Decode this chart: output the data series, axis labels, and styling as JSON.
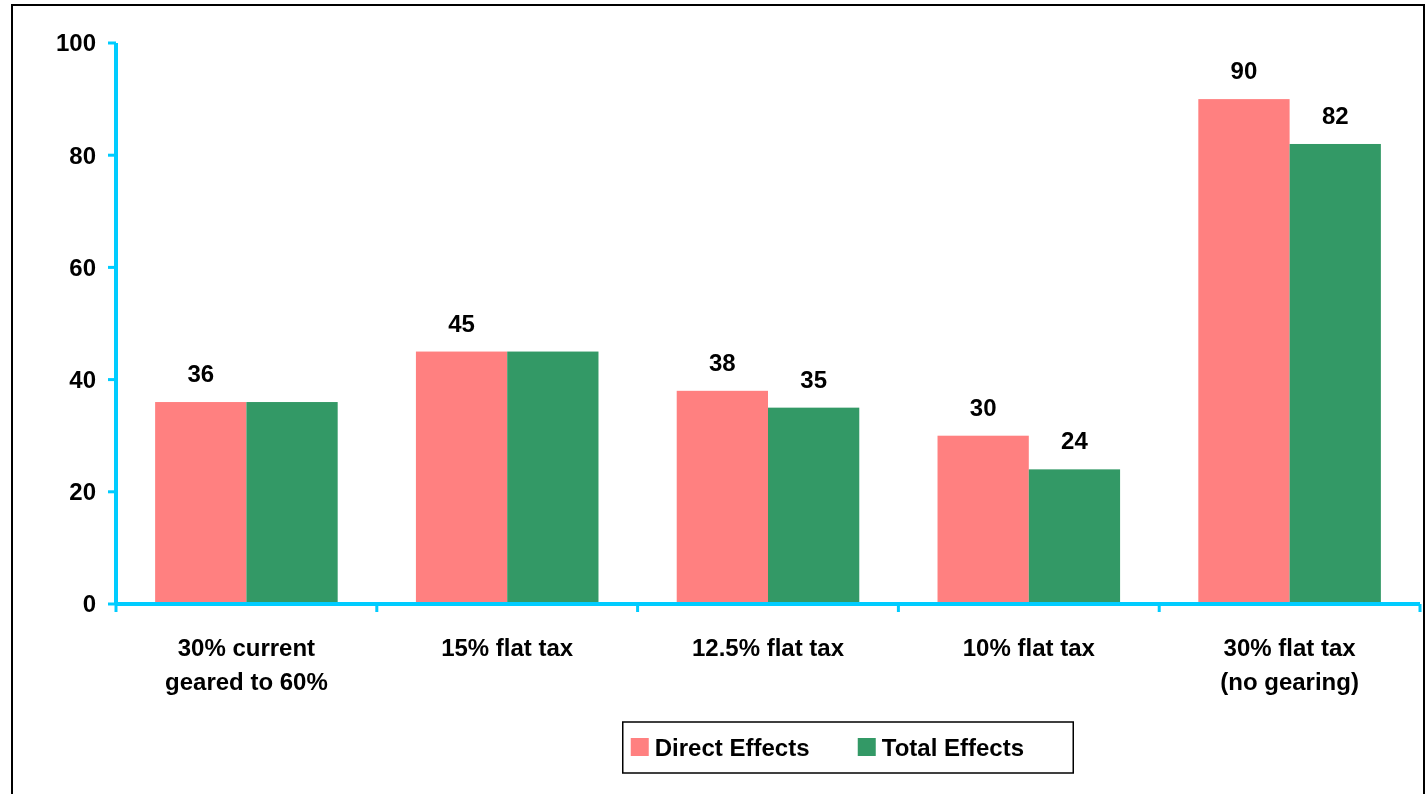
{
  "chart_data": {
    "type": "bar",
    "categories": [
      "30% current geared to 60%",
      "15% flat tax",
      "12.5% flat tax",
      "10% flat tax",
      "30% flat tax (no gearing)"
    ],
    "series": [
      {
        "name": "Direct Effects",
        "color": "#ff8080",
        "values": [
          36,
          45,
          38,
          30,
          90
        ],
        "value_labels": [
          "36",
          "45",
          "38",
          "30",
          "90"
        ]
      },
      {
        "name": "Total Effects",
        "color": "#339966",
        "values": [
          36,
          45,
          35,
          24,
          82
        ],
        "value_labels": [
          null,
          null,
          "35",
          "24",
          "82"
        ]
      }
    ],
    "ylim": [
      0,
      100
    ],
    "yticks": [
      0,
      20,
      40,
      60,
      80,
      100
    ],
    "grid": false,
    "legend": "bottom"
  }
}
